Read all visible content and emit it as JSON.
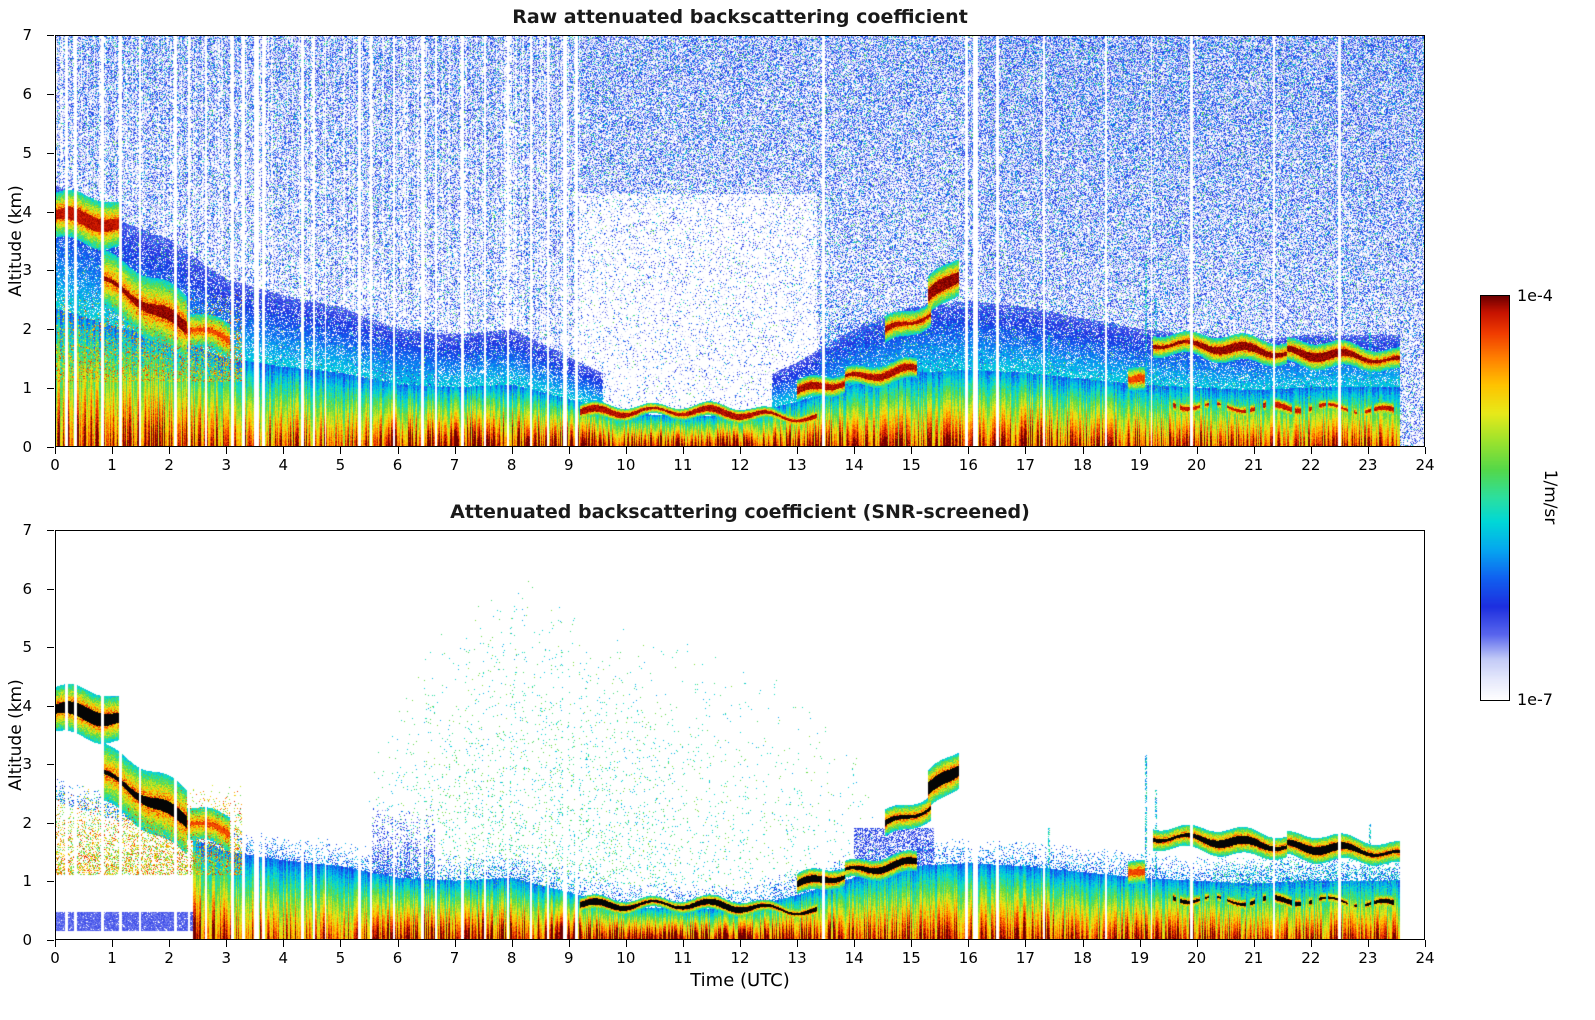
{
  "chart_data": {
    "type": "heatmap",
    "description": "Lidar/ceilometer attenuated backscatter time-height curtain plots for one day: raw signal (top panel, with background noise speckle) and SNR-screened signal (bottom panel, noise removed).",
    "x": {
      "label": "Time (UTC)",
      "min": 0,
      "max": 24,
      "ticks": [
        0,
        1,
        2,
        3,
        4,
        5,
        6,
        7,
        8,
        9,
        10,
        11,
        12,
        13,
        14,
        15,
        16,
        17,
        18,
        19,
        20,
        21,
        22,
        23,
        24
      ]
    },
    "y": {
      "label": "Altitude (km)",
      "min": 0,
      "max": 7,
      "ticks": [
        0,
        1,
        2,
        3,
        4,
        5,
        6,
        7
      ]
    },
    "colorbar": {
      "scale": "log",
      "min_label": "1e-7",
      "max_label": "1e-4",
      "units": "1/m/sr",
      "colormap_stops": [
        [
          0.0,
          "#ffffff"
        ],
        [
          0.05,
          "#e6e9fc"
        ],
        [
          0.1,
          "#c3cbf7"
        ],
        [
          0.16,
          "#5a67ee"
        ],
        [
          0.23,
          "#1e2fe0"
        ],
        [
          0.3,
          "#1160f0"
        ],
        [
          0.37,
          "#06a6f0"
        ],
        [
          0.44,
          "#00d8d8"
        ],
        [
          0.5,
          "#2ce0a0"
        ],
        [
          0.57,
          "#55d84a"
        ],
        [
          0.64,
          "#9ce32e"
        ],
        [
          0.71,
          "#e8ea1a"
        ],
        [
          0.78,
          "#ffc400"
        ],
        [
          0.85,
          "#ff7d00"
        ],
        [
          0.91,
          "#f03b00"
        ],
        [
          0.96,
          "#c81400"
        ],
        [
          1.0,
          "#700000"
        ]
      ]
    },
    "panels": [
      {
        "id": "raw",
        "seed": 1234,
        "title": "Raw attenuated backscattering coefficient",
        "background": "dense blue noise speckle increasing with altitude"
      },
      {
        "id": "screened",
        "seed": 987,
        "title": "Attenuated backscattering coefficient (SNR-screened)",
        "background": "white; noise removed, sparse green residual speckle 6-14 UTC"
      }
    ],
    "signal_end_utc": 23.58,
    "screened_bl_suppress_until_utc": 2.4,
    "boundary_layer_top_km": [
      2.35,
      2.05,
      1.85,
      1.5,
      1.35,
      1.25,
      1.05,
      1.0,
      1.05,
      0.8,
      0.55,
      0.52,
      0.52,
      0.75,
      1.05,
      1.25,
      1.3,
      1.25,
      1.15,
      1.05,
      1.0,
      0.95,
      1.0,
      1.0,
      1.0
    ],
    "surface_strength": [
      0.92,
      0.93,
      0.95,
      0.93,
      0.9,
      0.88,
      0.97,
      1.0,
      1.0,
      1.02,
      1.02,
      1.02,
      1.02,
      1.0,
      0.95,
      0.92,
      0.95,
      0.97,
      0.92,
      0.95,
      0.95,
      0.9,
      0.9,
      0.92,
      0.9
    ],
    "cloud_layers": [
      {
        "t0": 0.0,
        "t1": 1.15,
        "z0": 3.95,
        "z1": 3.72,
        "w": 0.2,
        "s": 0.96,
        "halo": 0.3
      },
      {
        "t0": 0.85,
        "t1": 2.3,
        "z0": 2.8,
        "z1": 2.05,
        "w": 0.18,
        "s": 0.985,
        "halo": 0.45
      },
      {
        "t0": 2.3,
        "t1": 3.05,
        "z0": 2.05,
        "z1": 1.8,
        "w": 0.12,
        "s": 0.9,
        "halo": 0.25
      },
      {
        "t0": 9.2,
        "t1": 13.35,
        "z0": 0.62,
        "z1": 0.5,
        "w": 0.09,
        "s": 0.97,
        "halo": 0.07
      },
      {
        "t0": 13.0,
        "t1": 13.85,
        "z0": 0.95,
        "z1": 1.1,
        "w": 0.1,
        "s": 0.97,
        "halo": 0.12
      },
      {
        "t0": 13.85,
        "t1": 15.1,
        "z0": 1.12,
        "z1": 1.3,
        "w": 0.1,
        "s": 0.97,
        "halo": 0.12
      },
      {
        "t0": 14.55,
        "t1": 15.35,
        "z0": 1.95,
        "z1": 2.3,
        "w": 0.13,
        "s": 0.97,
        "halo": 0.18
      },
      {
        "t0": 15.3,
        "t1": 15.85,
        "z0": 2.55,
        "z1": 2.95,
        "w": 0.18,
        "s": 0.985,
        "halo": 0.22
      },
      {
        "t0": 18.8,
        "t1": 19.1,
        "z0": 1.18,
        "z1": 1.1,
        "w": 0.09,
        "s": 0.9,
        "halo": 0.15
      },
      {
        "t0": 19.25,
        "t1": 21.6,
        "z0": 1.72,
        "z1": 1.62,
        "w": 0.12,
        "s": 0.985,
        "halo": 0.15
      },
      {
        "t0": 21.6,
        "t1": 23.58,
        "z0": 1.62,
        "z1": 1.42,
        "w": 0.12,
        "s": 0.985,
        "halo": 0.15
      },
      {
        "t0": 19.6,
        "t1": 23.5,
        "z0": 0.72,
        "z1": 0.58,
        "w": 0.07,
        "s": 0.96,
        "halo": 0.08,
        "dotted": true
      }
    ],
    "regions": [
      {
        "panel": "both",
        "t0": 0.0,
        "t1": 3.3,
        "z0": 1.1,
        "z1": 2.65,
        "p": 0.5,
        "v0": 0.5,
        "v1": 0.95,
        "fade": true
      },
      {
        "panel": "raw",
        "t0": 13.4,
        "t1": 16.3,
        "z0": 0.9,
        "z1": 2.6,
        "p": 0.6,
        "v0": 0.16,
        "v1": 0.4,
        "fade": true
      },
      {
        "panel": "raw",
        "t0": 5.5,
        "t1": 6.7,
        "z0": 0.9,
        "z1": 2.2,
        "p": 0.8,
        "v0": 0.15,
        "v1": 0.35,
        "fade": true
      },
      {
        "panel": "screened",
        "t0": 0.0,
        "t1": 2.62,
        "z0": 0.13,
        "z1": 0.46,
        "p": 0.94,
        "v0": 0.13,
        "v1": 0.2,
        "fade": false
      },
      {
        "panel": "screened",
        "t0": 5.55,
        "t1": 6.7,
        "z0": 0.7,
        "z1": 2.3,
        "p": 0.7,
        "v0": 0.12,
        "v1": 0.3,
        "fade": true,
        "columnar": true
      },
      {
        "panel": "screened",
        "t0": 14.0,
        "t1": 15.4,
        "z0": 0.45,
        "z1": 1.9,
        "p": 0.55,
        "v0": 0.1,
        "v1": 0.3,
        "fade": false
      },
      {
        "panel": "screened",
        "t0": 20.3,
        "t1": 23.55,
        "z0": 0.7,
        "z1": 1.45,
        "p": 0.45,
        "v0": 0.28,
        "v1": 0.55,
        "fade": true
      }
    ],
    "screened_speckle": {
      "t": [
        5.5,
        6.5,
        7.5,
        8.5,
        9.5,
        10.5,
        11.5,
        12.5,
        13.5,
        14.5
      ],
      "zmax": [
        3.2,
        5.2,
        6.0,
        6.45,
        5.6,
        5.2,
        5.2,
        4.8,
        4.2,
        2.6
      ],
      "p": 0.035,
      "v0": 0.36,
      "v1": 0.62
    },
    "spikes": [
      {
        "t": 17.42,
        "zmax": 1.9
      },
      {
        "t": 19.12,
        "zmax": 3.15
      },
      {
        "t": 19.3,
        "zmax": 2.55
      },
      {
        "t": 23.05,
        "zmax": 2.0
      }
    ],
    "data_gaps_utc": [
      [
        0.18,
        0.05
      ],
      [
        0.34,
        0.04
      ],
      [
        0.82,
        0.05
      ],
      [
        1.13,
        0.04
      ],
      [
        1.47,
        0.03
      ],
      [
        2.09,
        0.05
      ],
      [
        2.33,
        0.04
      ],
      [
        2.63,
        0.04
      ],
      [
        3.09,
        0.05
      ],
      [
        3.29,
        0.04
      ],
      [
        3.52,
        0.09
      ],
      [
        3.64,
        0.04
      ],
      [
        4.33,
        0.05
      ],
      [
        4.53,
        0.04
      ],
      [
        4.73,
        0.03
      ],
      [
        5.33,
        0.05
      ],
      [
        5.53,
        0.04
      ],
      [
        5.93,
        0.04
      ],
      [
        6.43,
        0.04
      ],
      [
        6.67,
        0.03
      ],
      [
        7.13,
        0.04
      ],
      [
        7.53,
        0.04
      ],
      [
        7.93,
        0.03
      ],
      [
        8.33,
        0.04
      ],
      [
        8.63,
        0.03
      ],
      [
        8.93,
        0.07
      ],
      [
        9.13,
        0.04
      ],
      [
        13.47,
        0.05
      ],
      [
        15.97,
        0.05
      ],
      [
        16.13,
        0.1
      ],
      [
        16.52,
        0.05
      ],
      [
        17.33,
        0.04
      ],
      [
        18.42,
        0.04
      ],
      [
        19.22,
        0.03
      ],
      [
        19.92,
        0.04
      ],
      [
        21.37,
        0.04
      ],
      [
        22.52,
        0.04
      ]
    ]
  }
}
